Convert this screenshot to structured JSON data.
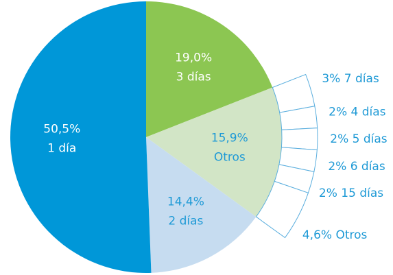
{
  "chart_data": {
    "type": "pie",
    "categories": [
      "3 días",
      "Otros",
      "2 días",
      "1 día"
    ],
    "values": [
      19.0,
      15.9,
      14.4,
      50.5
    ],
    "value_labels": [
      "19,0%",
      "15,9%",
      "14,4%",
      "50,5%"
    ],
    "colors": [
      "#8cc652",
      "#d2e5c6",
      "#c6dcf0",
      "#0097d8"
    ],
    "label_colors": [
      "#ffffff",
      "#1f9ad6",
      "#1f9ad6",
      "#ffffff"
    ],
    "breakdown": {
      "categories": [
        "7 días",
        "4 días",
        "5 días",
        "6 días",
        "15 días",
        "Otros"
      ],
      "values": [
        3,
        2,
        2,
        2,
        2,
        4.6
      ],
      "value_labels": [
        "3%",
        "2%",
        "2%",
        "2%",
        "2%",
        "4,6%"
      ],
      "color": "#5aaede"
    }
  }
}
